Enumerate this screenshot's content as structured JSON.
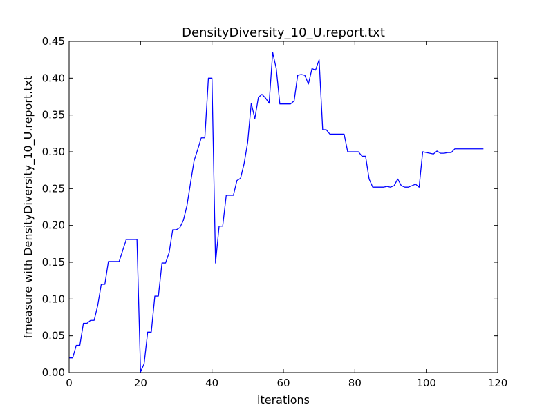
{
  "chart_data": {
    "type": "line",
    "title": "DensityDiversity_10_U.report.txt",
    "xlabel": "iterations",
    "ylabel": "fmeasure with DensityDiversity_10_U.report.txt",
    "xlim": [
      0,
      120
    ],
    "ylim": [
      0.0,
      0.45
    ],
    "grid": false,
    "x_ticks": [
      0,
      20,
      40,
      60,
      80,
      100,
      120
    ],
    "x_tick_labels": [
      "0",
      "20",
      "40",
      "60",
      "80",
      "100",
      "120"
    ],
    "y_ticks": [
      0.0,
      0.05,
      0.1,
      0.15,
      0.2,
      0.25,
      0.3,
      0.35,
      0.4,
      0.45
    ],
    "y_tick_labels": [
      "0.00",
      "0.05",
      "0.10",
      "0.15",
      "0.20",
      "0.25",
      "0.30",
      "0.35",
      "0.40",
      "0.45"
    ],
    "line_color": "#0000ff",
    "series": [
      {
        "x": [
          0,
          1,
          2,
          3,
          4,
          5,
          6,
          7,
          8,
          9,
          10,
          11,
          12,
          13,
          14,
          15,
          16,
          17,
          18,
          19,
          20,
          21,
          22,
          23,
          24,
          25,
          26,
          27,
          28,
          29,
          30,
          31,
          32,
          33,
          34,
          35,
          36,
          37,
          38,
          39,
          40,
          41,
          42,
          43,
          44,
          45,
          46,
          47,
          48,
          49,
          50,
          51,
          52,
          53,
          54,
          55,
          56,
          57,
          58,
          59,
          60,
          61,
          62,
          63,
          64,
          65,
          66,
          67,
          68,
          69,
          70,
          71,
          72,
          73,
          74,
          75,
          76,
          77,
          78,
          79,
          80,
          81,
          82,
          83,
          84,
          85,
          86,
          87,
          88,
          89,
          90,
          91,
          92,
          93,
          94,
          95,
          96,
          97,
          98,
          99,
          100,
          101,
          102,
          103,
          104,
          105,
          106,
          107,
          108,
          109,
          110,
          111,
          112,
          113,
          114,
          115,
          116
        ],
        "values": [
          0.02,
          0.02,
          0.037,
          0.037,
          0.067,
          0.067,
          0.071,
          0.071,
          0.091,
          0.12,
          0.12,
          0.151,
          0.151,
          0.151,
          0.151,
          0.166,
          0.181,
          0.181,
          0.181,
          0.181,
          0.001,
          0.012,
          0.055,
          0.055,
          0.104,
          0.104,
          0.149,
          0.149,
          0.163,
          0.194,
          0.194,
          0.197,
          0.207,
          0.227,
          0.258,
          0.288,
          0.303,
          0.319,
          0.319,
          0.4,
          0.4,
          0.149,
          0.199,
          0.199,
          0.241,
          0.241,
          0.241,
          0.261,
          0.264,
          0.284,
          0.313,
          0.366,
          0.345,
          0.374,
          0.378,
          0.373,
          0.366,
          0.435,
          0.413,
          0.365,
          0.365,
          0.365,
          0.365,
          0.369,
          0.404,
          0.405,
          0.404,
          0.392,
          0.413,
          0.411,
          0.425,
          0.33,
          0.33,
          0.324,
          0.324,
          0.324,
          0.324,
          0.324,
          0.3,
          0.3,
          0.3,
          0.3,
          0.294,
          0.294,
          0.263,
          0.252,
          0.252,
          0.252,
          0.252,
          0.253,
          0.252,
          0.254,
          0.263,
          0.254,
          0.252,
          0.252,
          0.254,
          0.256,
          0.252,
          0.3,
          0.299,
          0.298,
          0.297,
          0.301,
          0.298,
          0.298,
          0.299,
          0.299,
          0.304,
          0.304,
          0.304,
          0.304,
          0.304,
          0.304,
          0.304,
          0.304,
          0.304
        ]
      }
    ]
  }
}
